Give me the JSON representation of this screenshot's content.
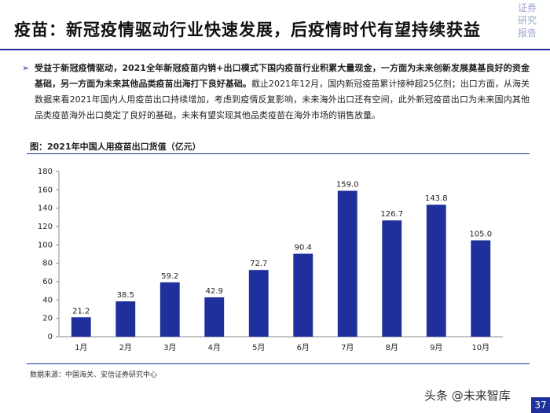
{
  "header": {
    "title": "疫苗：新冠疫情驱动行业快速发展，后疫情时代有望持续获益",
    "logo": [
      "证券",
      "研究",
      "报告"
    ]
  },
  "body": {
    "bold": "受益于新冠疫情驱动，2021全年新冠疫苗内销+出口模式下国内疫苗行业积累大量现金，一方面为未来创新发展奠基良好的资金基础，另一方面为未来其他品类疫苗出海打下良好基础。",
    "text": "截止2021年12月，国内新冠疫苗累计接种超25亿剂；出口方面，从海关数据来看2021年国内人用疫苗出口持续增加，考虑到疫情反复影响，未来海外出口还有空间，此外新冠疫苗出口为未来国内其他品类疫苗海外出口奠定了良好的基础，未来有望实现其他品类疫苗在海外市场的销售放量。"
  },
  "chart_data": {
    "type": "bar",
    "title": "图：2021年中国人用疫苗出口货值（亿元）",
    "categories": [
      "1月",
      "2月",
      "3月",
      "4月",
      "5月",
      "6月",
      "7月",
      "8月",
      "9月",
      "10月"
    ],
    "values": [
      21.2,
      38.5,
      59.2,
      42.9,
      72.7,
      90.4,
      159.0,
      126.7,
      143.8,
      105.0
    ],
    "value_labels": [
      "21.2",
      "38.5",
      "59.2",
      "42.9",
      "72.7",
      "90.4",
      "159.0",
      "126.7",
      "143.8",
      "105.0"
    ],
    "color": "#1f2f9c",
    "ylim": [
      0,
      180
    ],
    "yticks": [
      0,
      20,
      40,
      60,
      80,
      100,
      120,
      140,
      160,
      180
    ],
    "grid": false
  },
  "footer": {
    "source": "数据来源：中国海关、安信证券研究中心",
    "watermark": "头条 @未来智库",
    "page": "37"
  }
}
